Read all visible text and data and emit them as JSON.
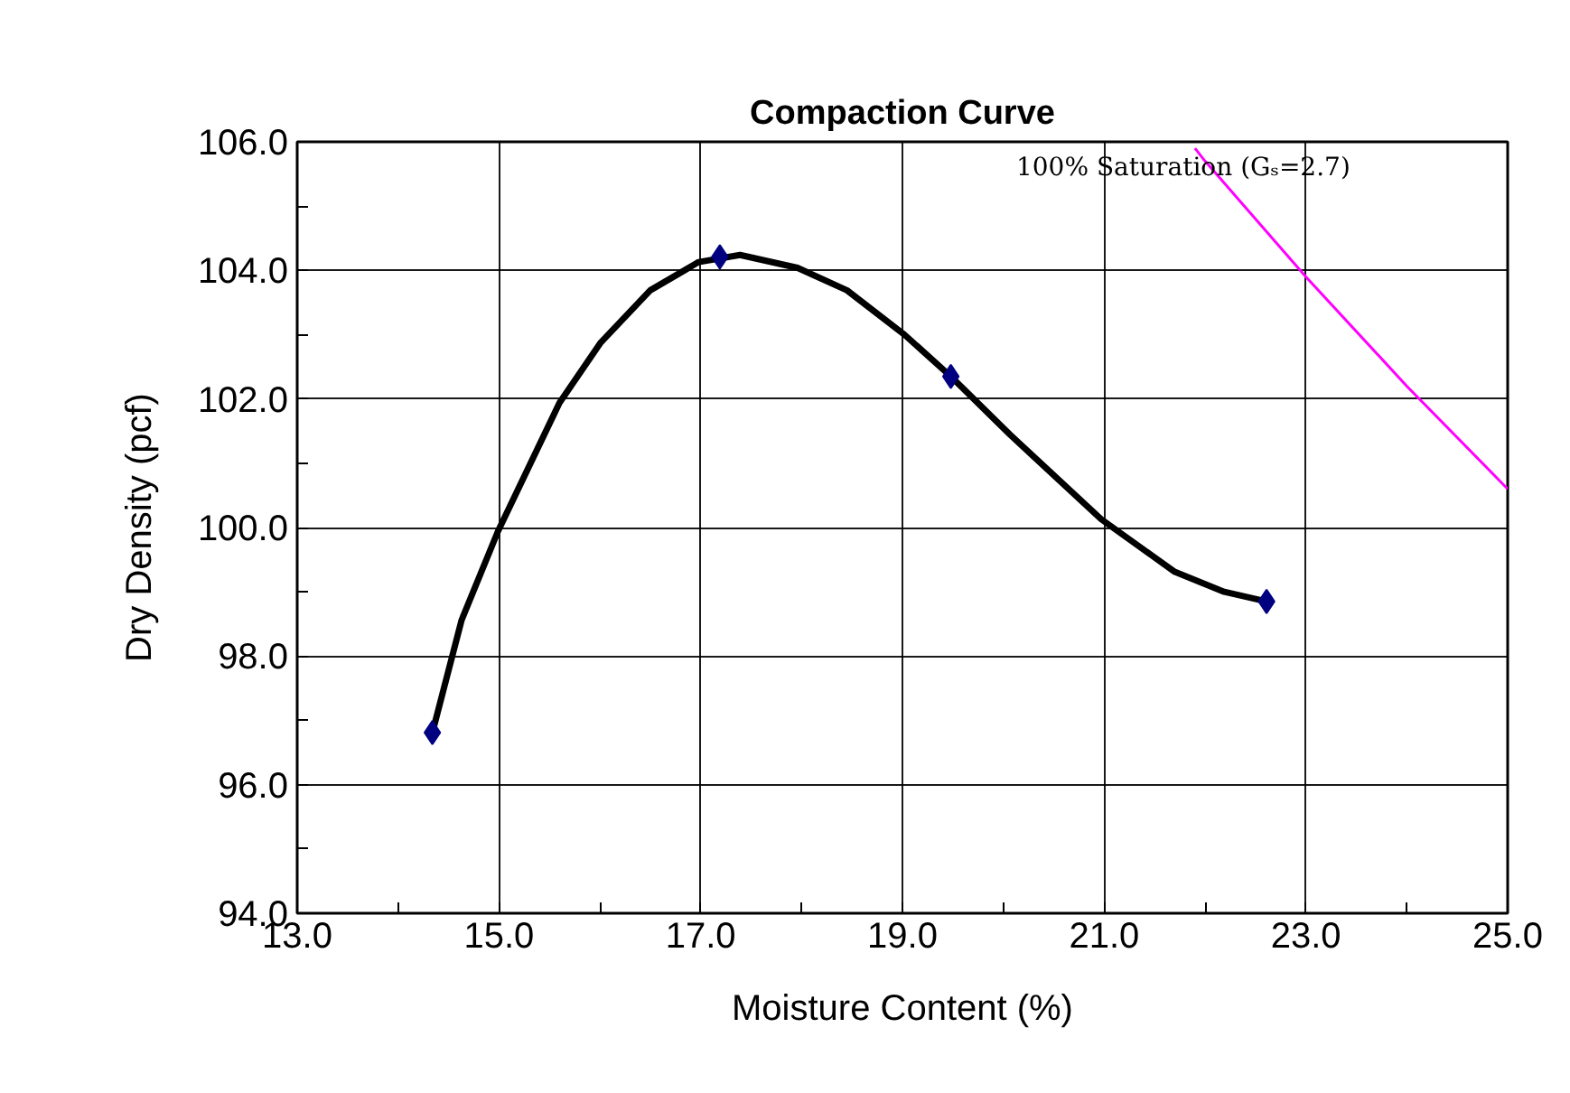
{
  "chart_data": {
    "type": "line",
    "title": "Compaction Curve",
    "xlabel": "Moisture Content (%)",
    "ylabel": "Dry Density (pcf)",
    "series": [
      {
        "color": "#000000",
        "x": [
          14.34,
          14.63,
          14.99,
          15.6,
          16.01,
          16.5,
          16.98,
          17.39,
          17.96,
          18.45,
          19.02,
          19.48,
          20.07,
          20.97,
          21.7,
          22.19,
          22.61
        ],
        "values": [
          96.81,
          98.56,
          99.94,
          101.94,
          102.88,
          103.69,
          104.13,
          104.24,
          104.04,
          103.69,
          103.0,
          102.35,
          101.44,
          100.13,
          99.31,
          99.0,
          98.85
        ]
      },
      {
        "type": "scatter",
        "color": "#000080",
        "marker": "diamond",
        "x": [
          14.34,
          17.19,
          19.48,
          22.61
        ],
        "values": [
          96.81,
          104.21,
          102.35,
          98.85
        ]
      },
      {
        "name": "100% Saturation (Gₛ=2.7)",
        "color": "#ff00ff",
        "x": [
          21.9,
          22,
          23,
          24,
          25
        ],
        "values": [
          105.9,
          105.7,
          103.9,
          102.2,
          100.6
        ]
      }
    ],
    "xlim": [
      13,
      25
    ],
    "ylim": [
      94,
      106
    ],
    "xticks": [
      {
        "value": 13,
        "label": "13.0"
      },
      {
        "value": 15,
        "label": "15.0"
      },
      {
        "value": 17,
        "label": "17.0"
      },
      {
        "value": 19,
        "label": "19.0"
      },
      {
        "value": 21,
        "label": "21.0"
      },
      {
        "value": 23,
        "label": "23.0"
      },
      {
        "value": 25,
        "label": "25.0"
      }
    ],
    "yticks": [
      {
        "value": 94,
        "label": "94.0"
      },
      {
        "value": 96,
        "label": "96.0"
      },
      {
        "value": 98,
        "label": "98.0"
      },
      {
        "value": 100,
        "label": "100.0"
      },
      {
        "value": 102,
        "label": "102.0"
      },
      {
        "value": 104,
        "label": "104.0"
      },
      {
        "value": 106,
        "label": "106.0"
      }
    ],
    "grid": true
  }
}
